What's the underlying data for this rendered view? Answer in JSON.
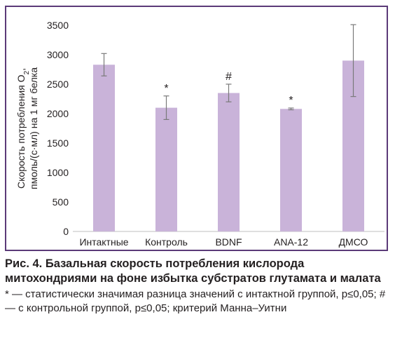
{
  "chart_data": {
    "type": "bar",
    "categories": [
      "Интактные",
      "Контроль",
      "BDNF",
      "ANA-12",
      "ДМСО"
    ],
    "values": [
      2830,
      2100,
      2350,
      2080,
      2900
    ],
    "errors": [
      190,
      200,
      150,
      15,
      610
    ],
    "marks": [
      "",
      "*",
      "#",
      "*",
      ""
    ],
    "ylabel_line1": "Скорость потребления О",
    "ylabel_sub": "2",
    "ylabel_suffix": ",",
    "ylabel_line2": "пмоль/(с·мл) на 1 мг белка",
    "ylim": [
      0,
      3500
    ],
    "yticks": [
      "0",
      "500",
      "1000",
      "1500",
      "2000",
      "2500",
      "3000",
      "3500"
    ],
    "grid": false,
    "bar_color": "#c9b3d9",
    "error_color": "#7a7a7a",
    "frame_color": "#5b3a78"
  },
  "caption": {
    "title": "Рис. 4. Базальная скорость потребления кислорода митохондриями на фоне избытка субстратов глутамата и малата",
    "note": "* — статистически значимая разница значений с интактной группой, p≤0,05; # — с контрольной группой, p≤0,05; критерий Манна–Уитни"
  }
}
